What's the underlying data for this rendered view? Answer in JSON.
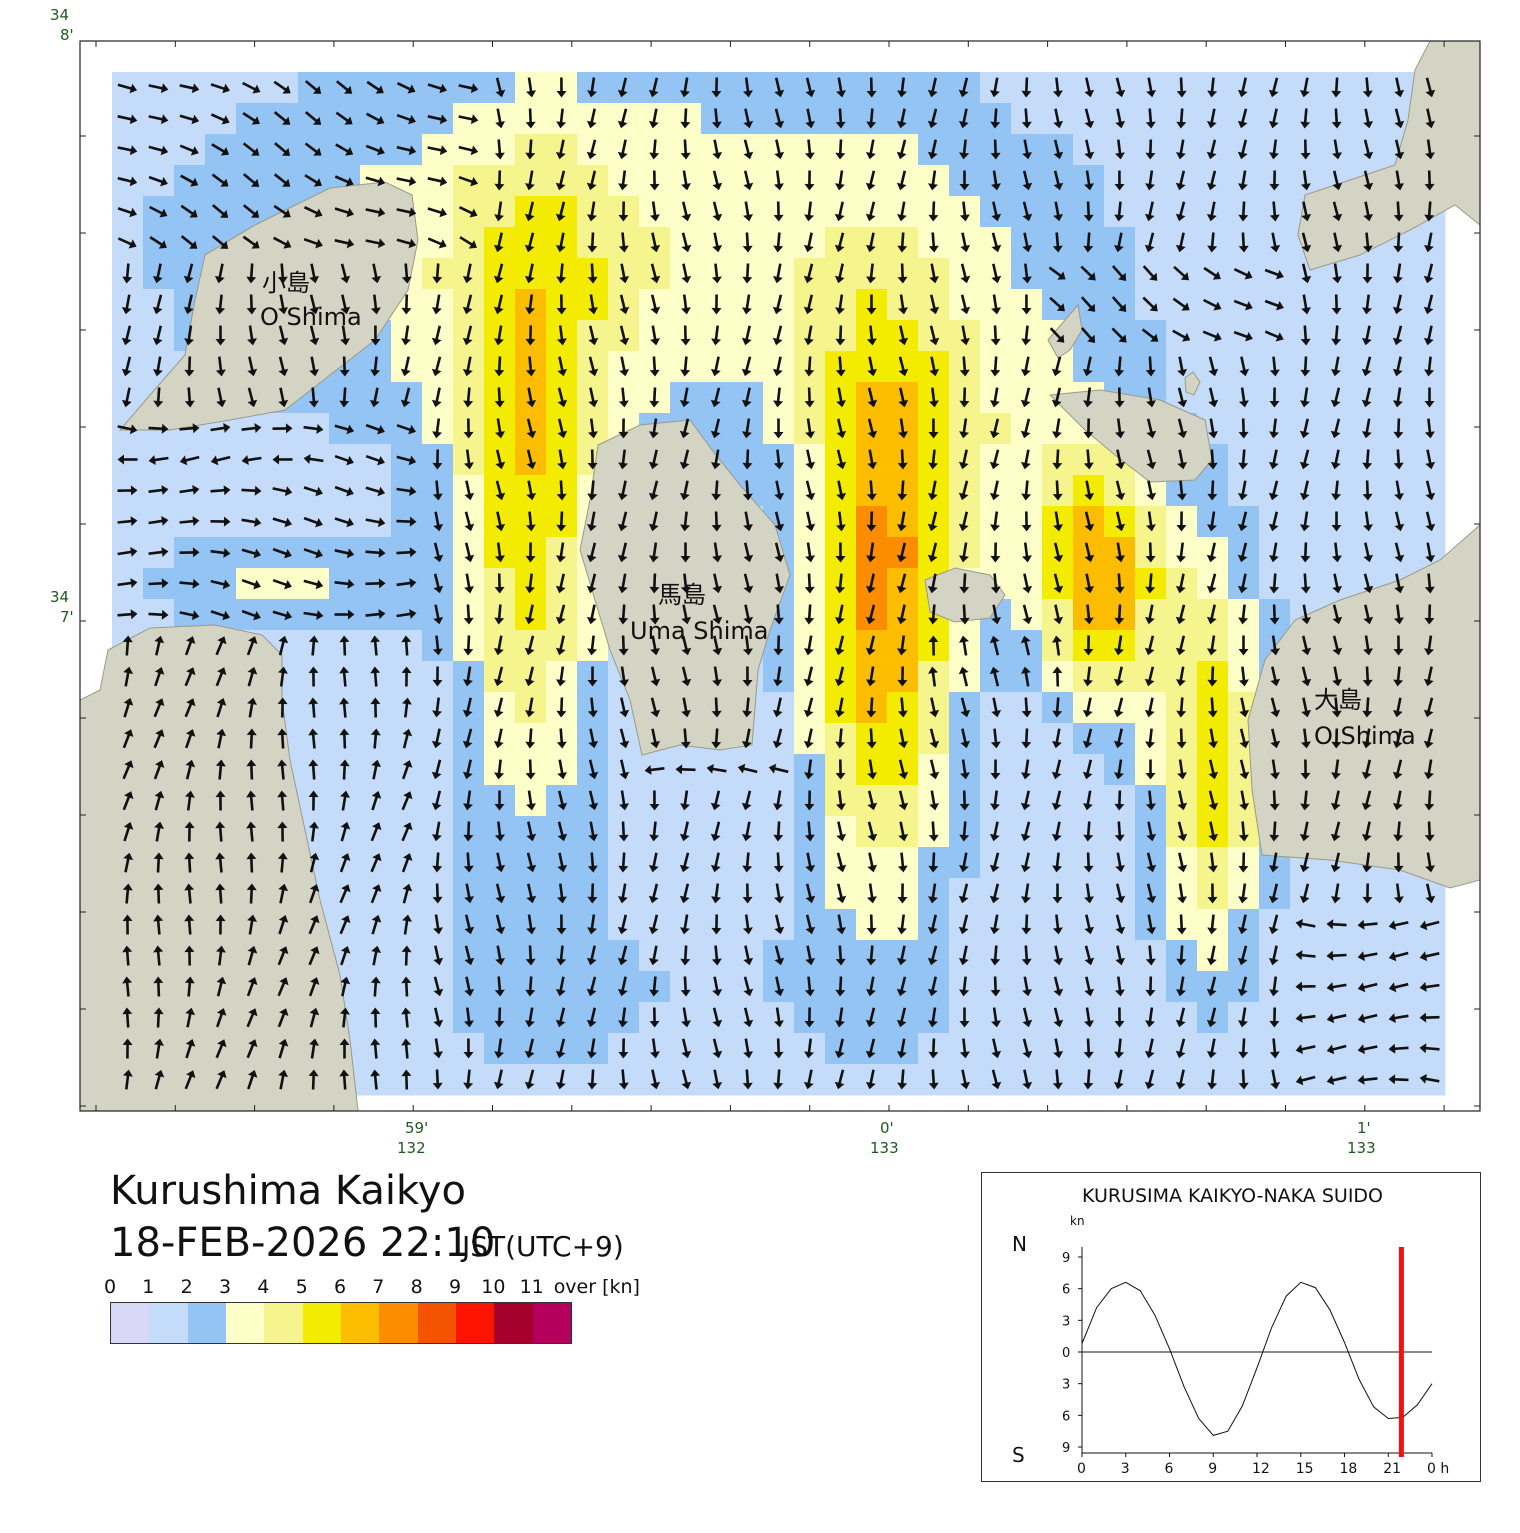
{
  "title": "Kurushima Kaikyo",
  "datetime": "18-FEB-2026 22:10",
  "timezone": "JST(UTC+9)",
  "islands": [
    {
      "name_ja": "小島",
      "name_en": "O Shima"
    },
    {
      "name_ja": "馬島",
      "name_en": "Uma Shima"
    },
    {
      "name_ja": "大島",
      "name_en": "O Shima"
    }
  ],
  "lat_labels": [
    {
      "deg": "34",
      "min": "8'"
    },
    {
      "deg": "34",
      "min": "7'"
    }
  ],
  "lon_labels": [
    {
      "min": "59'",
      "deg": "132"
    },
    {
      "min": "0'",
      "deg": "133"
    },
    {
      "min": "1'",
      "deg": "133"
    }
  ],
  "legend": {
    "ticks": [
      "0",
      "1",
      "2",
      "3",
      "4",
      "5",
      "6",
      "7",
      "8",
      "9",
      "10",
      "11",
      "over [kn]"
    ],
    "colors": [
      "#d8d8f6",
      "#c4dcfa",
      "#94c4f4",
      "#fefec8",
      "#f6f48c",
      "#f4ec00",
      "#fcbc00",
      "#fc8c00",
      "#f45400",
      "#fc1400",
      "#a4002c",
      "#b4005c"
    ]
  },
  "tide_chart": {
    "title": "KURUSIMA KAIKYO-NAKA SUIDO",
    "unit_label": "kn",
    "north_label": "N",
    "south_label": "S",
    "x_ticks": [
      "0",
      "3",
      "6",
      "9",
      "12",
      "15",
      "18",
      "21",
      "0 h"
    ],
    "y_ticks": [
      "9",
      "6",
      "3",
      "0",
      "3",
      "6",
      "9"
    ],
    "current_hour": 21.9,
    "marker_color": "#ee1111"
  },
  "chart_data": {
    "type": "line",
    "title": "KURUSIMA KAIKYO-NAKA SUIDO",
    "xlabel": "h",
    "ylabel": "kn",
    "x": [
      0,
      1,
      2,
      3,
      4,
      5,
      6,
      7,
      8,
      9,
      10,
      11,
      12,
      13,
      14,
      15,
      16,
      17,
      18,
      19,
      20,
      21,
      22,
      23,
      24
    ],
    "series": [
      {
        "values": [
          0.8,
          4.2,
          6.0,
          6.6,
          5.8,
          3.5,
          0.3,
          -3.3,
          -6.3,
          -7.9,
          -7.5,
          -5.1,
          -1.5,
          2.3,
          5.3,
          6.6,
          6.1,
          4.0,
          0.9,
          -2.6,
          -5.2,
          -6.3,
          -6.2,
          -5.0,
          -3.0
        ]
      }
    ],
    "xlim": [
      0,
      24
    ],
    "ylim": [
      -9,
      9
    ]
  }
}
